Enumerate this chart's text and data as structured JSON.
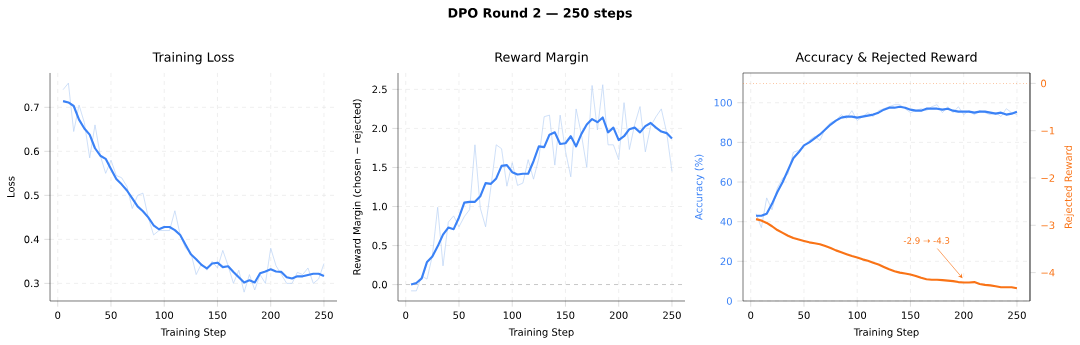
{
  "chart_data": [
    {
      "type": "other",
      "title": "DPO Round 2 — 250 steps"
    },
    {
      "type": "line",
      "title": "Training Loss",
      "xlabel": "Training Step",
      "ylabel": "Loss",
      "grid": true,
      "x": [
        5,
        10,
        15,
        20,
        25,
        30,
        35,
        40,
        45,
        50,
        55,
        60,
        65,
        70,
        75,
        80,
        85,
        90,
        95,
        100,
        105,
        110,
        115,
        120,
        125,
        130,
        135,
        140,
        145,
        150,
        155,
        160,
        165,
        170,
        175,
        180,
        185,
        190,
        195,
        200,
        205,
        210,
        215,
        220,
        225,
        230,
        235,
        240,
        245,
        250
      ],
      "xlim": [
        -7.25,
        262.25
      ],
      "xticks": [
        0,
        50,
        100,
        150,
        200,
        250
      ],
      "ylim": [
        0.26,
        0.778
      ],
      "yticks": [
        0.3,
        0.4,
        0.5,
        0.6,
        0.7
      ],
      "series": [
        {
          "color": "#b7d0f5",
          "values": [
            0.74,
            0.755,
            0.645,
            0.705,
            0.665,
            0.585,
            0.66,
            0.59,
            0.55,
            0.58,
            0.545,
            0.54,
            0.52,
            0.47,
            0.5,
            0.505,
            0.45,
            0.41,
            0.42,
            0.42,
            0.42,
            0.465,
            0.41,
            0.38,
            0.37,
            0.32,
            0.345,
            0.33,
            0.35,
            0.335,
            0.375,
            0.34,
            0.3,
            0.33,
            0.28,
            0.32,
            0.285,
            0.32,
            0.3,
            0.38,
            0.34,
            0.32,
            0.3,
            0.3,
            0.325,
            0.32,
            0.335,
            0.3,
            0.31,
            0.345
          ]
        },
        {
          "color": "#3b82f6",
          "values": [
            0.714,
            0.711,
            0.703,
            0.672,
            0.652,
            0.638,
            0.607,
            0.59,
            0.583,
            0.56,
            0.537,
            0.525,
            0.511,
            0.493,
            0.475,
            0.464,
            0.45,
            0.432,
            0.423,
            0.428,
            0.428,
            0.421,
            0.41,
            0.388,
            0.366,
            0.355,
            0.342,
            0.334,
            0.345,
            0.347,
            0.337,
            0.339,
            0.326,
            0.314,
            0.302,
            0.307,
            0.302,
            0.323,
            0.327,
            0.332,
            0.327,
            0.326,
            0.314,
            0.311,
            0.316,
            0.316,
            0.319,
            0.322,
            0.322,
            0.317
          ]
        }
      ]
    },
    {
      "type": "line",
      "title": "Reward Margin",
      "xlabel": "Training Step",
      "ylabel": "Reward Margin (chosen − rejected)",
      "grid": true,
      "x": [
        5,
        10,
        15,
        20,
        25,
        30,
        35,
        40,
        45,
        50,
        55,
        60,
        65,
        70,
        75,
        80,
        85,
        90,
        95,
        100,
        105,
        110,
        115,
        120,
        125,
        130,
        135,
        140,
        145,
        150,
        155,
        160,
        165,
        170,
        175,
        180,
        185,
        190,
        195,
        200,
        205,
        210,
        215,
        220,
        225,
        230,
        235,
        240,
        245,
        250
      ],
      "xlim": [
        -7.25,
        262.25
      ],
      "xticks": [
        0,
        50,
        100,
        150,
        200,
        250
      ],
      "ylim": [
        -0.21,
        2.71
      ],
      "yticks": [
        {
          "value": 0,
          "label": "0.0"
        },
        {
          "value": 0.5,
          "label": "0.5"
        },
        {
          "value": 1,
          "label": "1.0"
        },
        {
          "value": 1.5,
          "label": "1.5"
        },
        {
          "value": 2,
          "label": "2.0"
        },
        {
          "value": 2.5,
          "label": "2.5"
        }
      ],
      "ref_lines": [
        {
          "axis": "y",
          "value": 0,
          "color": "#b0b0b0",
          "line_style": "dashed"
        }
      ],
      "series": [
        {
          "color": "#b7d0f5",
          "values": [
            -0.08,
            -0.08,
            0.11,
            0.07,
            0.37,
            0.99,
            0.24,
            0.8,
            0.88,
            0.74,
            0.87,
            0.96,
            1.79,
            0.98,
            0.74,
            1.25,
            1.79,
            1.74,
            1.26,
            1.56,
            1.27,
            1.3,
            1.6,
            1.35,
            1.62,
            2.15,
            2.17,
            1.53,
            2.17,
            1.71,
            1.38,
            2.25,
            1.92,
            1.5,
            2.55,
            1.98,
            2.56,
            1.79,
            1.79,
            1.6,
            2.33,
            1.73,
            2.05,
            2.28,
            1.7,
            2.03,
            2.15,
            2.25,
            1.95,
            1.45
          ]
        },
        {
          "color": "#3b82f6",
          "values": [
            0,
            0.02,
            0.08,
            0.29,
            0.36,
            0.49,
            0.64,
            0.73,
            0.71,
            0.86,
            1.05,
            1.06,
            1.06,
            1.13,
            1.3,
            1.29,
            1.36,
            1.52,
            1.53,
            1.44,
            1.41,
            1.42,
            1.42,
            1.58,
            1.77,
            1.76,
            1.92,
            1.95,
            1.8,
            1.81,
            1.9,
            1.77,
            1.93,
            2.05,
            2.12,
            2.08,
            2.14,
            1.95,
            2.01,
            1.85,
            1.9,
            1.99,
            2.01,
            1.95,
            2.03,
            2.07,
            2.01,
            1.96,
            1.94,
            1.87
          ]
        }
      ]
    },
    {
      "type": "line",
      "title": "Accuracy & Rejected Reward",
      "xlabel": "Training Step",
      "ylabel": "Accuracy (%)",
      "y2label": "Rejected Reward",
      "grid": true,
      "x": [
        5,
        10,
        15,
        20,
        25,
        30,
        35,
        40,
        45,
        50,
        55,
        60,
        65,
        70,
        75,
        80,
        85,
        90,
        95,
        100,
        105,
        110,
        115,
        120,
        125,
        130,
        135,
        140,
        145,
        150,
        155,
        160,
        165,
        170,
        175,
        180,
        185,
        190,
        195,
        200,
        205,
        210,
        215,
        220,
        225,
        230,
        235,
        240,
        245,
        250
      ],
      "xlim": [
        -7.25,
        262.25
      ],
      "xticks": [
        0,
        50,
        100,
        150,
        200,
        250
      ],
      "ylim": [
        0,
        115
      ],
      "yticks": [
        0,
        20,
        40,
        60,
        80,
        100
      ],
      "y2lim": [
        -4.6,
        0.22
      ],
      "y2ticks": [
        {
          "value": 0,
          "label": "0"
        },
        {
          "value": -1,
          "label": "−1"
        },
        {
          "value": -2,
          "label": "−2"
        },
        {
          "value": -3,
          "label": "−3"
        },
        {
          "value": -4,
          "label": "−4"
        }
      ],
      "ref_lines": [
        {
          "axis": "y2",
          "value": 0,
          "color": "#f97316",
          "line_style": "dotted"
        }
      ],
      "annotations": [
        "-2.9 → -4.3"
      ],
      "series": [
        {
          "color": "#b7d0f5",
          "values": [
            44,
            37,
            52,
            46,
            57,
            62,
            64,
            75,
            76,
            78,
            81,
            83,
            81,
            87,
            90,
            91,
            94,
            92,
            96,
            91,
            93,
            95,
            93,
            96,
            97,
            98,
            99,
            99,
            97,
            95,
            96,
            97,
            96,
            98,
            99,
            95,
            98,
            95,
            98,
            94,
            96,
            94,
            96,
            95,
            94,
            95,
            93,
            97,
            95,
            94
          ]
        },
        {
          "color": "#3b82f6",
          "values": [
            43,
            43,
            44,
            49,
            55,
            60,
            66,
            72,
            75,
            78.5,
            80,
            82,
            84,
            86.5,
            89,
            91,
            92.5,
            93,
            93,
            92.5,
            93,
            93.5,
            94,
            95,
            96.5,
            97.5,
            97.5,
            98,
            97.5,
            96.5,
            96,
            96,
            97,
            97,
            97,
            96.5,
            97,
            96,
            95.5,
            95.5,
            95.5,
            95,
            95.5,
            95.5,
            95,
            94.5,
            95,
            94,
            94.5,
            95.5
          ]
        },
        {
          "color": "#f97316",
          "axis": "y2",
          "values": [
            -2.87,
            -2.9,
            -2.95,
            -3.02,
            -3.1,
            -3.16,
            -3.22,
            -3.27,
            -3.3,
            -3.33,
            -3.36,
            -3.38,
            -3.4,
            -3.44,
            -3.48,
            -3.53,
            -3.57,
            -3.61,
            -3.65,
            -3.68,
            -3.72,
            -3.75,
            -3.79,
            -3.83,
            -3.88,
            -3.93,
            -3.97,
            -4,
            -4.02,
            -4.04,
            -4.07,
            -4.11,
            -4.14,
            -4.15,
            -4.15,
            -4.16,
            -4.17,
            -4.18,
            -4.2,
            -4.21,
            -4.21,
            -4.2,
            -4.24,
            -4.26,
            -4.27,
            -4.29,
            -4.31,
            -4.31,
            -4.31,
            -4.33
          ]
        }
      ]
    }
  ]
}
